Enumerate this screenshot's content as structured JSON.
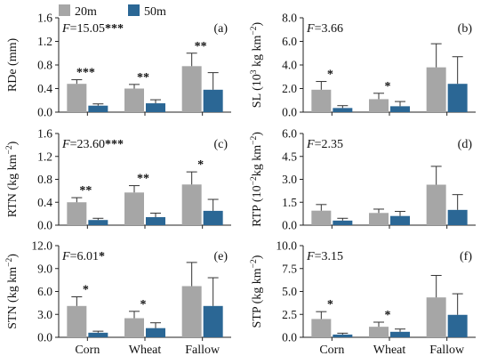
{
  "legend": [
    {
      "key": "s20",
      "label": "20m",
      "color": "#a6a6a6"
    },
    {
      "key": "s50",
      "label": "50m",
      "color": "#2b6795"
    }
  ],
  "chart_data": [
    {
      "type": "bar",
      "panel": "(a)",
      "ylabel_parts": [
        {
          "t": "RDe (mm)"
        }
      ],
      "stat_var": "F",
      "stat_value": "=15.05",
      "stat_sig": "***",
      "ylim": [
        0,
        1.6
      ],
      "yticks": [
        "0.0",
        "0.4",
        "0.8",
        "1.2",
        "1.6"
      ],
      "categories": [
        "Corn",
        "Wheat",
        "Fallow"
      ],
      "show_xticklabels": false,
      "series": [
        {
          "values": [
            0.48,
            0.4,
            0.78
          ],
          "errors": [
            0.07,
            0.07,
            0.22
          ]
        },
        {
          "values": [
            0.11,
            0.15,
            0.38
          ],
          "errors": [
            0.03,
            0.06,
            0.29
          ]
        }
      ],
      "sig": [
        "***",
        "**",
        "**"
      ]
    },
    {
      "type": "bar",
      "panel": "(b)",
      "ylabel_parts": [
        {
          "t": "SL (10"
        },
        {
          "t": "3",
          "sup": true
        },
        {
          "t": " kg km"
        },
        {
          "t": "−2",
          "sup": true
        },
        {
          "t": ")"
        }
      ],
      "stat_var": "F",
      "stat_value": "=3.66",
      "stat_sig": "",
      "ylim": [
        0,
        8
      ],
      "yticks": [
        "0.0",
        "2.0",
        "4.0",
        "6.0",
        "8.0"
      ],
      "categories": [
        "Corn",
        "Wheat",
        "Fallow"
      ],
      "show_xticklabels": false,
      "series": [
        {
          "values": [
            1.9,
            1.1,
            3.8
          ],
          "errors": [
            0.7,
            0.5,
            2.0
          ]
        },
        {
          "values": [
            0.35,
            0.5,
            2.4
          ],
          "errors": [
            0.2,
            0.4,
            2.3
          ]
        }
      ],
      "sig": [
        "*",
        "*",
        ""
      ]
    },
    {
      "type": "bar",
      "panel": "(c)",
      "ylabel_parts": [
        {
          "t": "RTN (kg km"
        },
        {
          "t": "−2",
          "sup": true
        },
        {
          "t": ")"
        }
      ],
      "stat_var": "F",
      "stat_value": "=23.60",
      "stat_sig": "***",
      "ylim": [
        0,
        1.6
      ],
      "yticks": [
        "0.0",
        "0.4",
        "0.8",
        "1.2",
        "1.6"
      ],
      "categories": [
        "Corn",
        "Wheat",
        "Fallow"
      ],
      "show_xticklabels": false,
      "series": [
        {
          "values": [
            0.4,
            0.57,
            0.71
          ],
          "errors": [
            0.08,
            0.12,
            0.22
          ]
        },
        {
          "values": [
            0.09,
            0.14,
            0.25
          ],
          "errors": [
            0.03,
            0.07,
            0.2
          ]
        }
      ],
      "sig": [
        "**",
        "**",
        "*"
      ]
    },
    {
      "type": "bar",
      "panel": "(d)",
      "ylabel_parts": [
        {
          "t": "RTP (10"
        },
        {
          "t": "−2",
          "sup": true
        },
        {
          "t": "kg km"
        },
        {
          "t": "−2",
          "sup": true
        },
        {
          "t": ")"
        }
      ],
      "stat_var": "F",
      "stat_value": "=2.35",
      "stat_sig": "",
      "ylim": [
        0,
        6
      ],
      "yticks": [
        "0.0",
        "1.5",
        "3.0",
        "4.5",
        "6.0"
      ],
      "categories": [
        "Corn",
        "Wheat",
        "Fallow"
      ],
      "show_xticklabels": false,
      "series": [
        {
          "values": [
            0.95,
            0.8,
            2.65
          ],
          "errors": [
            0.4,
            0.25,
            1.2
          ]
        },
        {
          "values": [
            0.3,
            0.6,
            1.0
          ],
          "errors": [
            0.15,
            0.3,
            1.0
          ]
        }
      ],
      "sig": [
        "",
        "",
        ""
      ]
    },
    {
      "type": "bar",
      "panel": "(e)",
      "ylabel_parts": [
        {
          "t": "STN (kg km"
        },
        {
          "t": "−2",
          "sup": true
        },
        {
          "t": ")"
        }
      ],
      "stat_var": "F",
      "stat_value": "=6.01",
      "stat_sig": "*",
      "ylim": [
        0,
        12
      ],
      "yticks": [
        "0.0",
        "3.0",
        "6.0",
        "9.0",
        "12.0"
      ],
      "categories": [
        "Corn",
        "Wheat",
        "Fallow"
      ],
      "show_xticklabels": true,
      "series": [
        {
          "values": [
            4.1,
            2.5,
            6.7
          ],
          "errors": [
            1.2,
            0.9,
            3.1
          ]
        },
        {
          "values": [
            0.6,
            1.2,
            4.1
          ],
          "errors": [
            0.2,
            0.7,
            3.7
          ]
        }
      ],
      "sig": [
        "*",
        "*",
        ""
      ]
    },
    {
      "type": "bar",
      "panel": "(f)",
      "ylabel_parts": [
        {
          "t": "STP (kg km"
        },
        {
          "t": "−2",
          "sup": true
        },
        {
          "t": ")"
        }
      ],
      "stat_var": "F",
      "stat_value": "=3.15",
      "stat_sig": "",
      "ylim": [
        0,
        10
      ],
      "yticks": [
        "0.0",
        "2.5",
        "5.0",
        "7.5",
        "10.0"
      ],
      "categories": [
        "Corn",
        "Wheat",
        "Fallow"
      ],
      "show_xticklabels": true,
      "series": [
        {
          "values": [
            2.0,
            1.15,
            4.35
          ],
          "errors": [
            0.8,
            0.5,
            2.4
          ]
        },
        {
          "values": [
            0.3,
            0.6,
            2.45
          ],
          "errors": [
            0.15,
            0.3,
            2.3
          ]
        }
      ],
      "sig": [
        "*",
        "*",
        ""
      ]
    }
  ]
}
